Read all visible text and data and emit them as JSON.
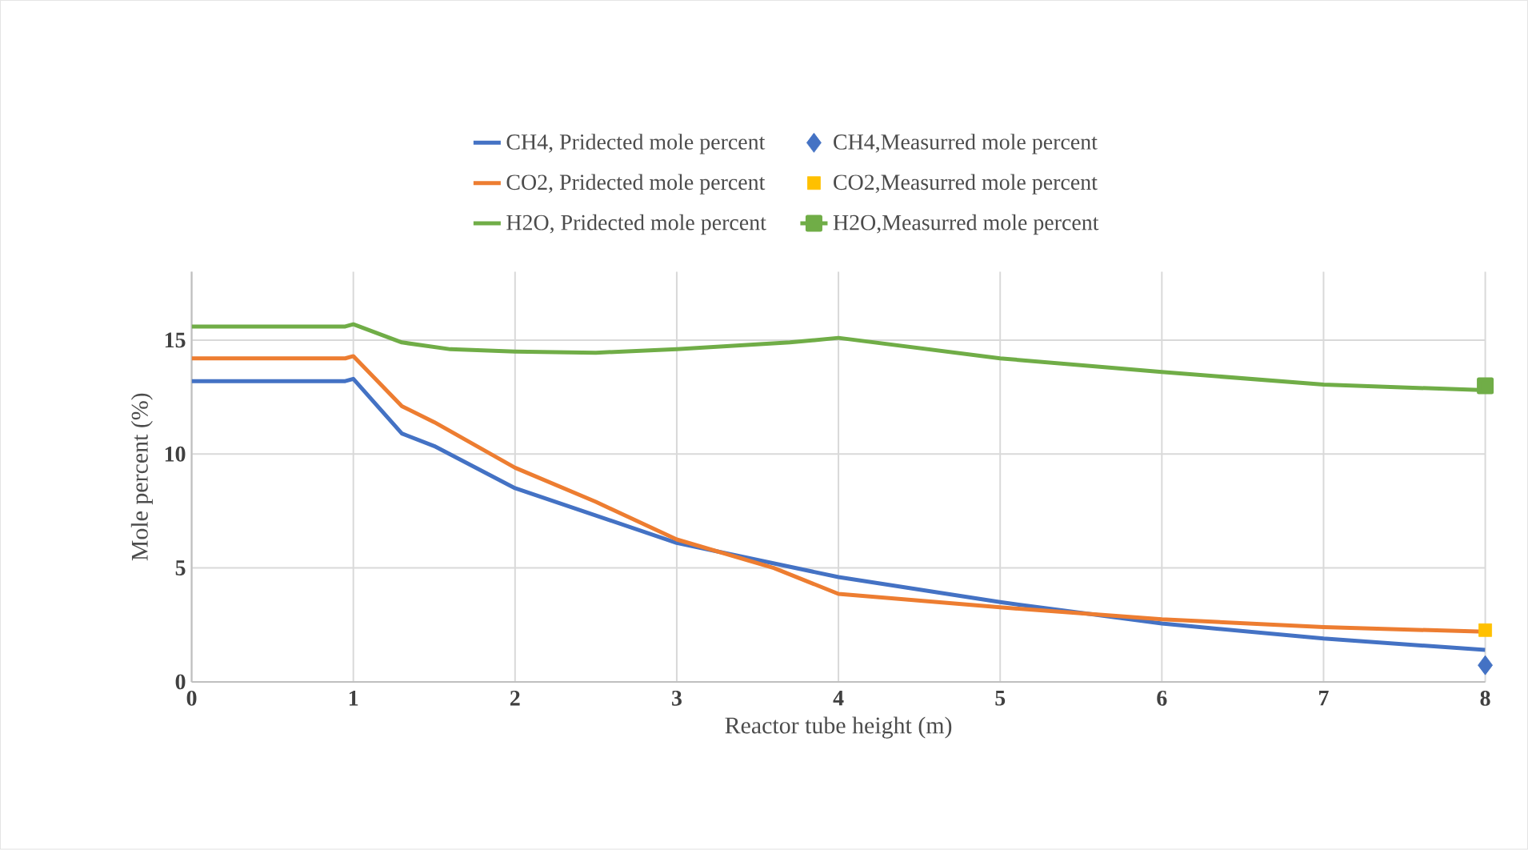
{
  "chart_data": {
    "type": "line",
    "xlabel": "Reactor tube height (m)",
    "ylabel": "Mole percent (%)",
    "xlim": [
      0,
      8
    ],
    "xticks": [
      0,
      1,
      2,
      3,
      4,
      5,
      6,
      7,
      8
    ],
    "ylim": [
      0,
      18
    ],
    "yticks": [
      0,
      5,
      10,
      15
    ],
    "grid": true,
    "legend": "top",
    "series": [
      {
        "name": "CH4, Pridected mole percent",
        "color": "#4472c4",
        "x": [
          0,
          0.95,
          1.0,
          1.3,
          1.5,
          2,
          2.5,
          3,
          4,
          5,
          6,
          7,
          8
        ],
        "values": [
          13.2,
          13.2,
          13.3,
          10.9,
          10.35,
          8.5,
          7.3,
          6.1,
          4.6,
          3.5,
          2.56,
          1.9,
          1.4
        ]
      },
      {
        "name": "CH4,Measurred mole  percent",
        "type": "scatter",
        "marker": "diamond",
        "color": "#4472c4",
        "x": [
          8
        ],
        "values": [
          0.73
        ]
      },
      {
        "name": "CO2, Pridected mole percent",
        "color": "#ed7d31",
        "x": [
          0,
          0.95,
          1.0,
          1.3,
          1.5,
          2,
          2.5,
          3,
          3.6,
          4,
          5,
          6,
          7,
          8
        ],
        "values": [
          14.2,
          14.2,
          14.3,
          12.1,
          11.4,
          9.4,
          7.9,
          6.25,
          5.0,
          3.86,
          3.27,
          2.75,
          2.4,
          2.2
        ]
      },
      {
        "name": "CO2,Measurred mole  percent",
        "type": "scatter",
        "marker": "square",
        "color": "#ffc000",
        "x": [
          8
        ],
        "values": [
          2.27
        ]
      },
      {
        "name": "H2O, Pridected mole percent",
        "color": "#70ad47",
        "x": [
          0,
          0.95,
          1.0,
          1.3,
          1.6,
          2,
          2.5,
          3,
          3.7,
          4,
          5,
          6,
          7,
          8
        ],
        "values": [
          15.6,
          15.6,
          15.7,
          14.9,
          14.6,
          14.5,
          14.45,
          14.6,
          14.9,
          15.1,
          14.2,
          13.6,
          13.05,
          12.8
        ]
      },
      {
        "name": "H2O,Measurred mole  percent",
        "type": "line",
        "marker": "square",
        "color": "#70ad47",
        "x": [
          8
        ],
        "values": [
          13.0
        ]
      }
    ]
  }
}
